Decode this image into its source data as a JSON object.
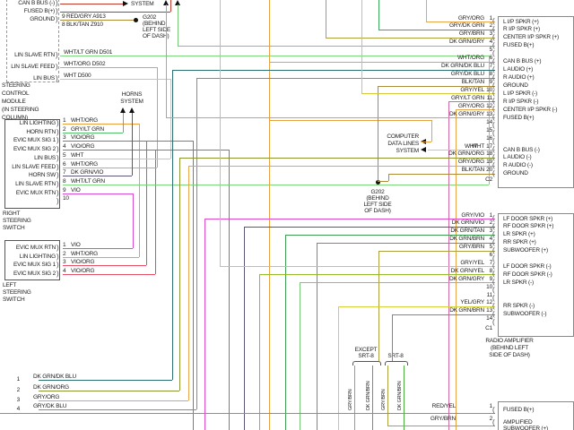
{
  "palette": {
    "RED/GRY": "#c0392b",
    "BLK/TAN": "#ad8b3a",
    "WHT/LT GRN": "#7dd87d",
    "WHT/ORG": "#e8a13e",
    "WHT": "#c4c4c4",
    "GRY/LT GRN": "#53c06a",
    "VIO/ORG": "#e24e63",
    "DK GRN/VIO": "#5d5878",
    "VIO": "#d94ad9",
    "GRY/ORG": "#e8a54a",
    "GRY/DK GRN": "#3ba85c",
    "GRY/BRN": "#aca040",
    "DK GRN/GRY": "#79c879",
    "DK GRN/DK BLU": "#2a7070",
    "DK GRN/ORG": "#8a9631",
    "GRY/DK BLU": "#7b86c8",
    "GRY/VIO": "#dd4ad0",
    "DK GRN/TAN": "#3f9d52",
    "DK GRN/BRN": "#4cae3c",
    "GRY/YEL": "#d6ca39",
    "DK GRN/YEL": "#93bb2a",
    "YEL/GRY": "#d6d23e",
    "RED/YEL": "#e2762e",
    "PINK_RUN": "#cf6aa6"
  },
  "steering_module": {
    "label": [
      "STEERING",
      "CONTROL",
      "MODULE",
      "(IN STEERING",
      "COLUMN)"
    ],
    "pins": [
      {
        "name": "CAN B BUS (-)"
      },
      {
        "name": "FUSED B(+)",
        "num": "9",
        "wire": "RED/GRY",
        "circuit": "A913"
      },
      {
        "name": "GROUND",
        "num": "8",
        "wire": "BLK/TAN",
        "circuit": "Z910"
      },
      {
        "name": "LIN SLAVE RTN",
        "wire": "WHT/LT GRN",
        "circuit": "D501"
      },
      {
        "name": "LIN SLAVE FEED",
        "wire": "WHT/ORG",
        "circuit": "D502"
      },
      {
        "name": "LIN BUS",
        "wire": "WHT",
        "circuit": "D500"
      }
    ]
  },
  "right_switch": {
    "label": [
      "RIGHT",
      "STEERING",
      "SWITCH"
    ],
    "pins": [
      {
        "num": "1",
        "wire": "WHT/ORG",
        "name": "LIN LIGHTING"
      },
      {
        "num": "2",
        "wire": "GRY/LT GRN",
        "name": "HORN RTN"
      },
      {
        "num": "3",
        "wire": "VIO/ORG",
        "name": "EVIC MUX SIG 1"
      },
      {
        "num": "4",
        "wire": "VIO/ORG",
        "name": "EVIC MUX SIG 2"
      },
      {
        "num": "5",
        "wire": "WHT",
        "name": "LIN BUS"
      },
      {
        "num": "6",
        "wire": "WHT/ORG",
        "name": "LIN SLAVE FEED"
      },
      {
        "num": "7",
        "wire": "DK GRN/VIO",
        "name": "HORN SW"
      },
      {
        "num": "8",
        "wire": "WHT/LT GRN",
        "name": "LIN SLAVE RTN"
      },
      {
        "num": "9",
        "wire": "VIO",
        "name": "EVIC MUX RTN"
      },
      {
        "num": "10",
        "wire": "",
        "name": ""
      }
    ]
  },
  "left_switch": {
    "label": [
      "LEFT",
      "STEERING",
      "SWITCH"
    ],
    "pins": [
      {
        "num": "1",
        "wire": "VIO",
        "name": "EVIC MUX RTN"
      },
      {
        "num": "2",
        "wire": "WHT/ORG",
        "name": "LIN LIGHTING"
      },
      {
        "num": "3",
        "wire": "VIO/ORG",
        "name": "EVIC MUX SIG 1"
      },
      {
        "num": "4",
        "wire": "VIO/ORG",
        "name": "EVIC MUX SIG 2"
      }
    ]
  },
  "amp_c2": {
    "connector": "C2",
    "rows": [
      {
        "num": "1",
        "wire": "GRY/ORG",
        "name": "L I/P SPKR (+)"
      },
      {
        "num": "2",
        "wire": "GRY/DK GRN",
        "name": "R I/P SPKR (+)"
      },
      {
        "num": "3",
        "wire": "GRY/BRN",
        "name": "CENTER I/P SPKR (+)"
      },
      {
        "num": "4",
        "wire": "DK GRN/GRY",
        "name": "FUSED B(+)"
      },
      {
        "num": "5",
        "wire": "",
        "name": ""
      },
      {
        "num": "6",
        "wire": "WHT/ORG",
        "name": "CAN B BUS (+)"
      },
      {
        "num": "7",
        "wire": "DK GRN/DK BLU",
        "name": "L AUDIO (+)"
      },
      {
        "num": "8",
        "wire": "GRY/DK BLU",
        "name": "R AUDIO (+)"
      },
      {
        "num": "9",
        "wire": "BLK/TAN",
        "name": "GROUND"
      },
      {
        "num": "10",
        "wire": "GRY/YEL",
        "name": "L I/P SPKR (-)"
      },
      {
        "num": "11",
        "wire": "GRY/LT GRN",
        "name": "R I/P SPKR (-)"
      },
      {
        "num": "12",
        "wire": "GRY/ORG",
        "name": "CENTER I/P SPKR (-)"
      },
      {
        "num": "13",
        "wire": "DK GRN/GRY",
        "name": "FUSED B(+)"
      },
      {
        "num": "14",
        "wire": "",
        "name": ""
      },
      {
        "num": "15",
        "wire": "",
        "name": ""
      },
      {
        "num": "16",
        "wire": "",
        "name": ""
      },
      {
        "num": "17",
        "wire": "WHT",
        "name": "CAN B BUS (-)"
      },
      {
        "num": "18",
        "wire": "DK GRN/ORG",
        "name": "L AUDIO (-)"
      },
      {
        "num": "19",
        "wire": "GRY/ORG",
        "name": "R AUDIO (-)"
      },
      {
        "num": "20",
        "wire": "BLK/TAN",
        "name": "GROUND"
      }
    ]
  },
  "amp_c1": {
    "connector": "C1",
    "rows": [
      {
        "num": "1",
        "wire": "GRY/VIO",
        "name": "LF DOOR SPKR (+)"
      },
      {
        "num": "2",
        "wire": "DK GRN/VIO",
        "name": "RF DOOR SPKR (+)"
      },
      {
        "num": "3",
        "wire": "DK GRN/TAN",
        "name": "LR SPKR (+)"
      },
      {
        "num": "4",
        "wire": "DK GRN/BRN",
        "name": "RR SPKR (+)"
      },
      {
        "num": "5",
        "wire": "GRY/BRN",
        "name": "SUBWOOFER (+)"
      },
      {
        "num": "6",
        "wire": "",
        "name": ""
      },
      {
        "num": "7",
        "wire": "GRY/YEL",
        "name": "LF DOOR SPKR (-)"
      },
      {
        "num": "8",
        "wire": "DK GRN/YEL",
        "name": "RF DOOR SPKR (-)"
      },
      {
        "num": "9",
        "wire": "DK GRN/GRY",
        "name": "LR SPKR (-)"
      },
      {
        "num": "10",
        "wire": "",
        "name": ""
      },
      {
        "num": "11",
        "wire": "",
        "name": ""
      },
      {
        "num": "12",
        "wire": "YEL/GRY",
        "name": "RR SPKR (-)"
      },
      {
        "num": "13",
        "wire": "DK GRN/BRN",
        "name": "SUBWOOFER (-)"
      },
      {
        "num": "14",
        "wire": "",
        "name": ""
      }
    ]
  },
  "amp_label": [
    "RADIO AMPLIFIER",
    "(BEHIND LEFT",
    "SIDE OF DASH)"
  ],
  "amp_power": {
    "rows": [
      {
        "num": "1",
        "wire": "RED/YEL",
        "name": "FUSED B(+)"
      },
      {
        "num": "2",
        "wire": "GRY/BRN",
        "name": "AMPLIFIED"
      },
      {
        "num": "",
        "wire": "",
        "name": "SUBWOOFER (+)"
      }
    ]
  },
  "bottom_left_wires": [
    {
      "num": "1",
      "wire": "DK GRN/DK BLU"
    },
    {
      "num": "2",
      "wire": "DK GRN/ORG"
    },
    {
      "num": "3",
      "wire": "GRY/ORG"
    },
    {
      "num": "4",
      "wire": "GRY/DK BLU"
    }
  ],
  "annotations": {
    "system": "SYSTEM",
    "horns": [
      "HORNS",
      "SYSTEM"
    ],
    "computer": [
      "COMPUTER",
      "DATA LINES",
      "SYSTEM"
    ],
    "wht": "WHT",
    "g202_top": [
      "G202",
      "(BEHIND",
      "LEFT SIDE",
      "OF DASH)"
    ],
    "g202_mid": [
      "G202",
      "(BEHIND",
      "LEFT SIDE",
      "OF DASH)"
    ],
    "except_srt8": [
      "EXCEPT",
      "SRT-8"
    ],
    "srt8": "SRT-8",
    "srt8_wires": [
      "GRY/BRN",
      "DK GRN/BRN",
      "GRY/BRN",
      "DK GRN/BRN"
    ]
  }
}
